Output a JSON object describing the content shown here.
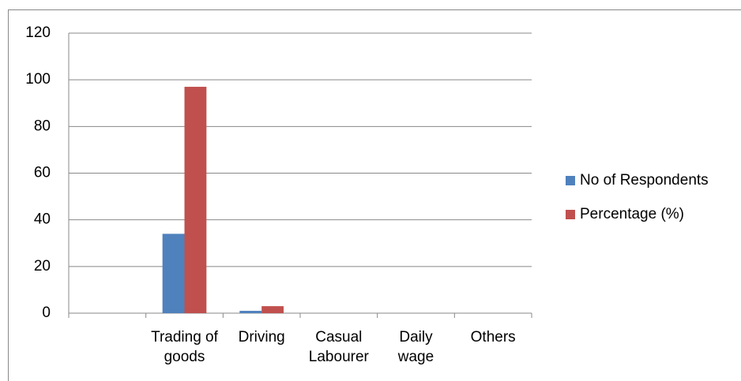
{
  "chart_data": {
    "type": "bar",
    "categories": [
      null,
      "Trading of goods",
      "Driving",
      "Casual Labourer",
      "Daily wage",
      "Others"
    ],
    "series": [
      {
        "name": "No of Respondents",
        "color": "#4f81bd",
        "values": [
          null,
          34,
          1,
          0,
          0,
          0
        ]
      },
      {
        "name": "Percentage (%)",
        "color": "#c0504d",
        "values": [
          null,
          97,
          3,
          0,
          0,
          0
        ]
      }
    ],
    "ylim": [
      0,
      120
    ],
    "yticks": [
      0,
      20,
      40,
      60,
      80,
      100,
      120
    ],
    "grid": true,
    "legend": "right"
  }
}
